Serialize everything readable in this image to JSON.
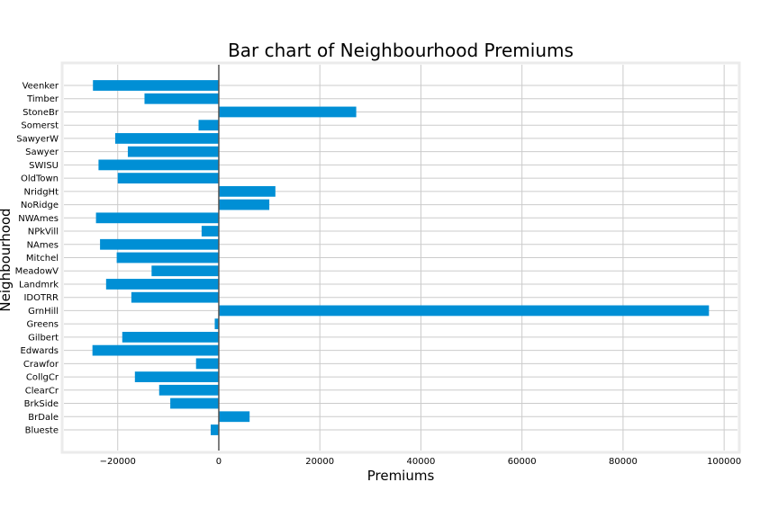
{
  "chart_data": {
    "type": "bar",
    "orientation": "horizontal",
    "title": "Bar chart of Neighbourhood Premiums",
    "xlabel": "Premiums",
    "ylabel": "Neighbourhood",
    "xlim": [
      -31000,
      103000
    ],
    "xticks": [
      -20000,
      0,
      20000,
      40000,
      60000,
      80000,
      100000
    ],
    "xtick_labels": [
      "−20000",
      "0",
      "20000",
      "40000",
      "60000",
      "80000",
      "100000"
    ],
    "grid": true,
    "bar_color": "#008fd5",
    "categories": [
      "Blueste",
      "BrDale",
      "BrkSide",
      "ClearCr",
      "CollgCr",
      "Crawfor",
      "Edwards",
      "Gilbert",
      "Greens",
      "GrnHill",
      "IDOTRR",
      "Landmrk",
      "MeadowV",
      "Mitchel",
      "NAmes",
      "NPkVill",
      "NWAmes",
      "NoRidge",
      "NridgHt",
      "OldTown",
      "SWISU",
      "Sawyer",
      "SawyerW",
      "Somerst",
      "StoneBr",
      "Timber",
      "Veenker"
    ],
    "values": [
      -1600,
      6100,
      -9600,
      -11800,
      -16600,
      -4500,
      -25000,
      -19100,
      -800,
      97000,
      -17300,
      -22300,
      -13300,
      -20200,
      -23500,
      -3400,
      -24300,
      10000,
      11200,
      -20000,
      -23800,
      -18000,
      -20500,
      -4000,
      27200,
      -14700,
      -24900
    ]
  }
}
